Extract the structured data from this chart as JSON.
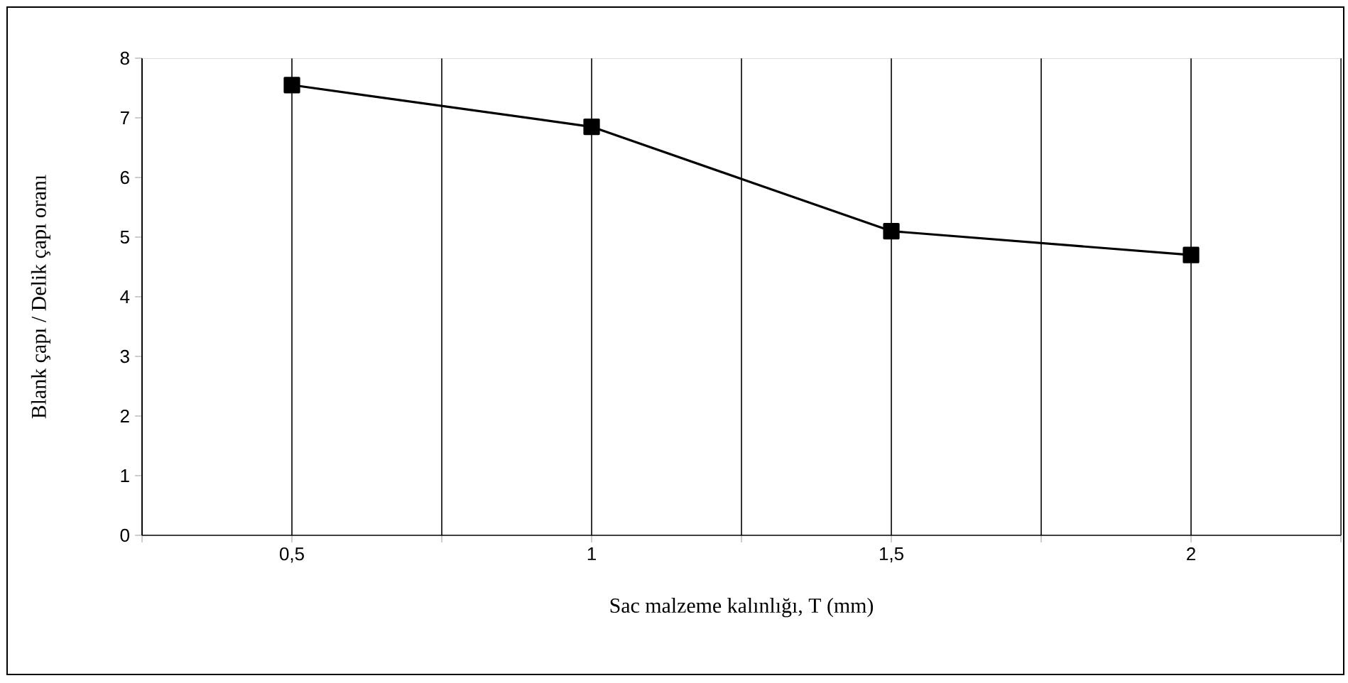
{
  "chart_data": {
    "type": "line",
    "xlabel": "Sac malzeme kalınlığı, T (mm)",
    "ylabel": "Blank çapı / Delik çapı oranı",
    "x": [
      0.5,
      1,
      1.5,
      2
    ],
    "series": [
      {
        "color": "#000000",
        "values": [
          7.55,
          6.85,
          5.1,
          4.7
        ]
      }
    ],
    "xlim": [
      0.25,
      2.25
    ],
    "xticks": [
      {
        "value": 0.25,
        "label": null
      },
      {
        "value": 0.5,
        "label": "0,5"
      },
      {
        "value": 0.75,
        "label": null
      },
      {
        "value": 1,
        "label": "1"
      },
      {
        "value": 1.25,
        "label": null
      },
      {
        "value": 1.5,
        "label": "1,5"
      },
      {
        "value": 1.75,
        "label": null
      },
      {
        "value": 2,
        "label": "2"
      },
      {
        "value": 2.25,
        "label": null
      }
    ],
    "ylim": [
      0,
      8
    ],
    "yticks": [
      0,
      1,
      2,
      3,
      4,
      5,
      6,
      7,
      8
    ],
    "grid": "x",
    "marker": "square",
    "line_style": "solid"
  }
}
